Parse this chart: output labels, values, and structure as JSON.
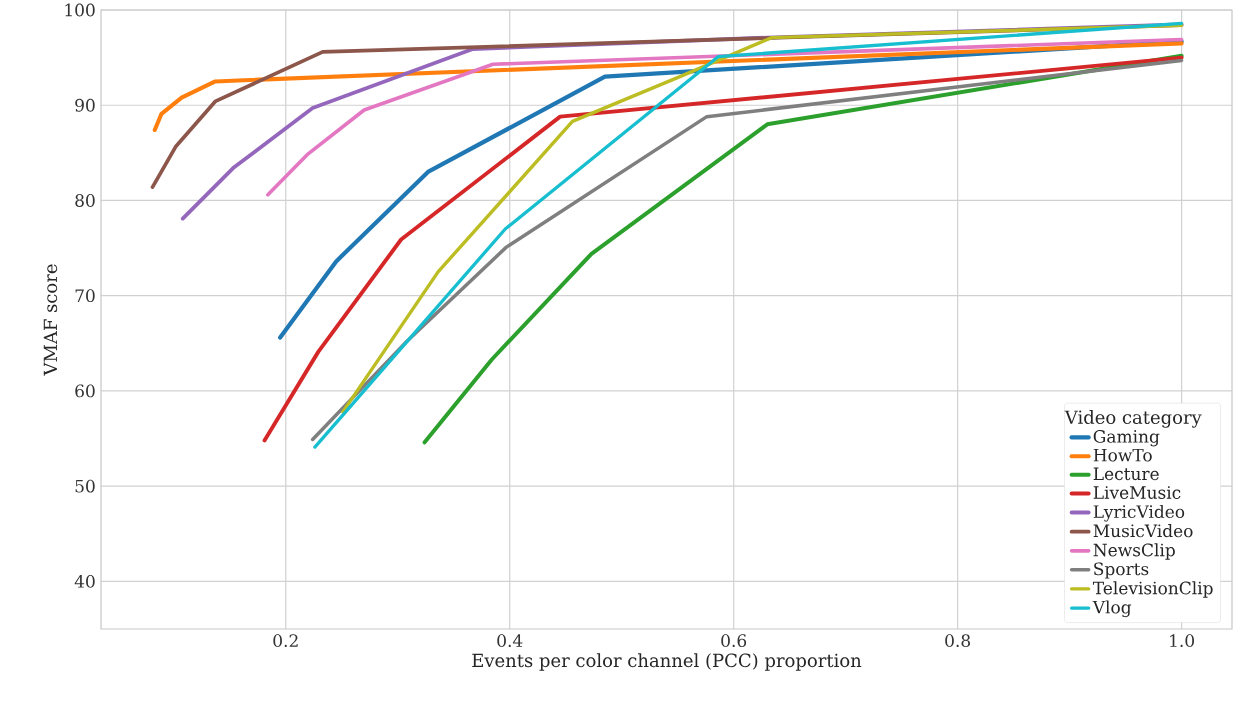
{
  "chart_data": {
    "type": "line",
    "xlabel": "Events per color channel (PCC) proportion",
    "ylabel": "VMAF score",
    "legend_title": "Video category",
    "legend": "bottom right",
    "grid": true,
    "marker": "none",
    "line_style": "solid",
    "xlim": [
      0.035,
      1.045
    ],
    "ylim": [
      35,
      100
    ],
    "xticks": [
      {
        "value": 0.2,
        "label": "0.2"
      },
      {
        "value": 0.4,
        "label": "0.4"
      },
      {
        "value": 0.6,
        "label": "0.6"
      },
      {
        "value": 0.8,
        "label": "0.8"
      },
      {
        "value": 1.0,
        "label": "1.0"
      }
    ],
    "yticks": [
      40,
      50,
      60,
      70,
      80,
      90,
      100
    ],
    "series": [
      {
        "name": "Gaming",
        "color": "#1f77b4",
        "x": [
          0.195,
          0.245,
          0.327,
          0.485,
          1.0
        ],
        "values": [
          65.6,
          73.6,
          83.0,
          93.0,
          96.7
        ]
      },
      {
        "name": "HowTo",
        "color": "#ff7f0e",
        "x": [
          0.083,
          0.089,
          0.107,
          0.137,
          1.0
        ],
        "values": [
          87.4,
          89.1,
          90.8,
          92.5,
          96.5
        ]
      },
      {
        "name": "Lecture",
        "color": "#2ca02c",
        "x": [
          0.324,
          0.384,
          0.473,
          0.63,
          1.0
        ],
        "values": [
          54.6,
          63.3,
          74.4,
          88.0,
          95.2
        ]
      },
      {
        "name": "LiveMusic",
        "color": "#d62728",
        "x": [
          0.181,
          0.229,
          0.303,
          0.445,
          1.0
        ],
        "values": [
          54.8,
          64.1,
          75.9,
          88.8,
          95.0
        ]
      },
      {
        "name": "LyricVideo",
        "color": "#9467bd",
        "x": [
          0.108,
          0.153,
          0.224,
          0.367,
          0.63,
          1.0
        ],
        "values": [
          78.1,
          83.4,
          89.7,
          95.9,
          97.1,
          98.5
        ]
      },
      {
        "name": "MusicVideo",
        "color": "#8c564b",
        "x": [
          0.081,
          0.102,
          0.137,
          0.233,
          1.0
        ],
        "values": [
          81.4,
          85.7,
          90.4,
          95.6,
          98.4
        ]
      },
      {
        "name": "NewsClip",
        "color": "#e377c2",
        "x": [
          0.184,
          0.22,
          0.27,
          0.385,
          1.0
        ],
        "values": [
          80.6,
          84.9,
          89.5,
          94.3,
          96.9
        ]
      },
      {
        "name": "Sports",
        "color": "#7f7f7f",
        "x": [
          0.224,
          0.308,
          0.397,
          0.576,
          1.0
        ],
        "values": [
          54.9,
          65.2,
          75.1,
          88.8,
          94.7
        ]
      },
      {
        "name": "TelevisionClip",
        "color": "#bcbd22",
        "x": [
          0.251,
          0.336,
          0.456,
          0.552,
          0.634,
          1.0
        ],
        "values": [
          57.8,
          72.5,
          88.3,
          93.0,
          97.1,
          98.4
        ]
      },
      {
        "name": "Vlog",
        "color": "#17becf",
        "x": [
          0.226,
          0.396,
          0.586,
          1.0
        ],
        "values": [
          54.1,
          77.0,
          95.1,
          98.6
        ]
      }
    ]
  }
}
